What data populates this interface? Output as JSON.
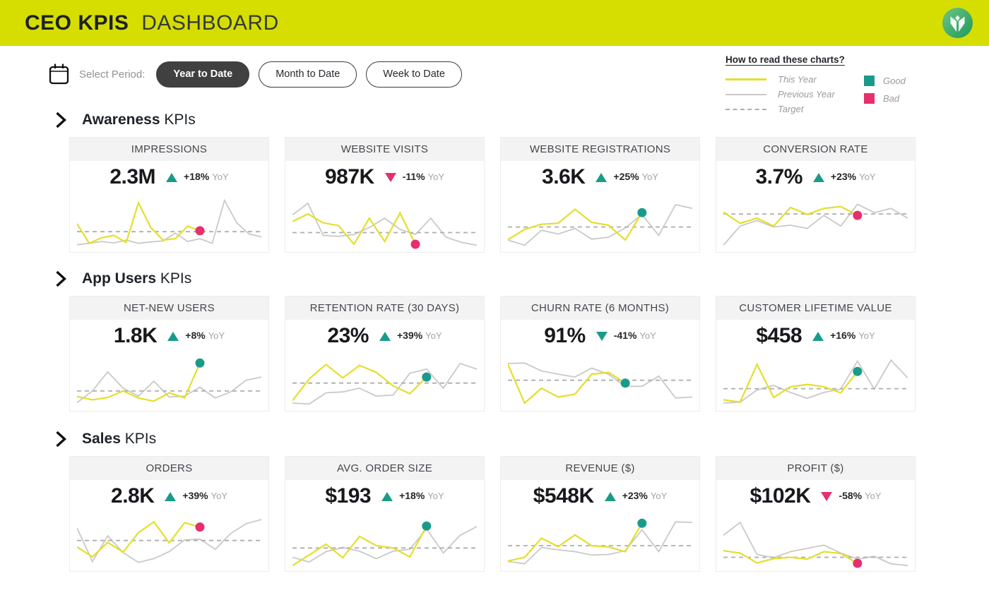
{
  "header": {
    "title_bold": "CEO KPIS",
    "title_light": "DASHBOARD"
  },
  "controls": {
    "label": "Select Period:",
    "periods": [
      {
        "label": "Year to Date",
        "active": true
      },
      {
        "label": "Month to Date",
        "active": false
      },
      {
        "label": "Week to Date",
        "active": false
      }
    ]
  },
  "legend": {
    "title": "How to read these charts?",
    "lines": [
      {
        "label": "This Year",
        "style": "this-year"
      },
      {
        "label": "Previous Year",
        "style": "previous-year"
      },
      {
        "label": "Target",
        "style": "target"
      }
    ],
    "markers": [
      {
        "label": "Good",
        "color_key": "good"
      },
      {
        "label": "Bad",
        "color_key": "bad"
      }
    ]
  },
  "colors": {
    "brand_yellow": "#d5de00",
    "line_this_year": "#e4df2b",
    "line_previous_year": "#c9c9c9",
    "line_target": "#aeaeae",
    "good": "#1a9b8a",
    "bad": "#e72f6d",
    "button_active_bg": "#404040",
    "card_header_bg": "#f3f3f3",
    "muted_text": "#a3a3a3",
    "logo_green_light": "#6ec487",
    "logo_green_dark": "#1e9a5a"
  },
  "sections": [
    {
      "title_bold": "Awareness",
      "title_rest": "KPIs",
      "cards": [
        {
          "title": "IMPRESSIONS",
          "value": "2.3M",
          "delta": "+18%",
          "delta_suffix": "YoY",
          "trend": "up",
          "trend_color": "good",
          "chart_index": 0
        },
        {
          "title": "WEBSITE VISITS",
          "value": "987K",
          "delta": "-11%",
          "delta_suffix": "YoY",
          "trend": "down",
          "trend_color": "bad",
          "chart_index": 1
        },
        {
          "title": "WEBSITE REGISTRATIONS",
          "value": "3.6K",
          "delta": "+25%",
          "delta_suffix": "YoY",
          "trend": "up",
          "trend_color": "good",
          "chart_index": 2
        },
        {
          "title": "CONVERSION RATE",
          "value": "3.7%",
          "delta": "+23%",
          "delta_suffix": "YoY",
          "trend": "up",
          "trend_color": "good",
          "chart_index": 3
        }
      ]
    },
    {
      "title_bold": "App Users",
      "title_rest": "KPIs",
      "cards": [
        {
          "title": "NET-NEW USERS",
          "value": "1.8K",
          "delta": "+8%",
          "delta_suffix": "YoY",
          "trend": "up",
          "trend_color": "good",
          "chart_index": 4
        },
        {
          "title": "RETENTION RATE (30 DAYS)",
          "value": "23%",
          "delta": "+39%",
          "delta_suffix": "YoY",
          "trend": "up",
          "trend_color": "good",
          "chart_index": 5
        },
        {
          "title": "CHURN RATE (6 MONTHS)",
          "value": "91%",
          "delta": "-41%",
          "delta_suffix": "YoY",
          "trend": "down",
          "trend_color": "good",
          "chart_index": 6
        },
        {
          "title": "CUSTOMER LIFETIME VALUE",
          "value": "$458",
          "delta": "+16%",
          "delta_suffix": "YoY",
          "trend": "up",
          "trend_color": "good",
          "chart_index": 7
        }
      ]
    },
    {
      "title_bold": "Sales",
      "title_rest": "KPIs",
      "cards": [
        {
          "title": "ORDERS",
          "value": "2.8K",
          "delta": "+39%",
          "delta_suffix": "YoY",
          "trend": "up",
          "trend_color": "good",
          "chart_index": 8
        },
        {
          "title": "AVG. ORDER SIZE",
          "value": "$193",
          "delta": "+18%",
          "delta_suffix": "YoY",
          "trend": "up",
          "trend_color": "good",
          "chart_index": 9
        },
        {
          "title": "REVENUE ($)",
          "value": "$548K",
          "delta": "+23%",
          "delta_suffix": "YoY",
          "trend": "up",
          "trend_color": "good",
          "chart_index": 10
        },
        {
          "title": "PROFIT ($)",
          "value": "$102K",
          "delta": "-58%",
          "delta_suffix": "YoY",
          "trend": "down",
          "trend_color": "bad",
          "chart_index": 11
        }
      ]
    }
  ],
  "chart_data": [
    {
      "type": "line",
      "title": "IMPRESSIONS",
      "target": 33,
      "end_marker": "bad",
      "series": [
        {
          "name": "This Year",
          "values": [
            50,
            8,
            20,
            25,
            10,
            95,
            42,
            15,
            18,
            45,
            35
          ]
        },
        {
          "name": "Previous Year",
          "values": [
            5,
            8,
            12,
            9,
            15,
            8,
            11,
            13,
            30,
            12,
            18,
            8,
            100,
            52,
            28,
            22
          ]
        }
      ]
    },
    {
      "type": "line",
      "title": "WEBSITE VISITS",
      "target": 31,
      "end_marker": "bad",
      "series": [
        {
          "name": "This Year",
          "values": [
            55,
            71,
            52,
            46,
            6,
            62,
            12,
            73,
            6
          ]
        },
        {
          "name": "Previous Year",
          "values": [
            69,
            94,
            25,
            23,
            27,
            42,
            62,
            38,
            27,
            62,
            21,
            10,
            4
          ]
        }
      ]
    },
    {
      "type": "line",
      "title": "WEBSITE REGISTRATIONS",
      "target": 43,
      "end_marker": "good",
      "series": [
        {
          "name": "This Year",
          "values": [
            16,
            38,
            49,
            51,
            81,
            53,
            47,
            15,
            74
          ]
        },
        {
          "name": "Previous Year",
          "values": [
            15,
            4,
            36,
            28,
            40,
            17,
            21,
            41,
            70,
            25,
            91,
            83
          ]
        }
      ]
    },
    {
      "type": "line",
      "title": "CONVERSION RATE",
      "target": 71,
      "end_marker": "bad",
      "series": [
        {
          "name": "This Year",
          "values": [
            75,
            51,
            62,
            45,
            85,
            70,
            83,
            87,
            68
          ]
        },
        {
          "name": "Previous Year",
          "values": [
            4,
            45,
            57,
            43,
            47,
            40,
            68,
            45,
            92,
            74,
            83,
            62
          ]
        }
      ]
    },
    {
      "type": "line",
      "title": "NET-NEW USERS",
      "target": 32,
      "end_marker": "good",
      "series": [
        {
          "name": "This Year",
          "values": [
            20,
            13,
            18,
            32,
            17,
            10,
            28,
            17,
            92
          ]
        },
        {
          "name": "Previous Year",
          "values": [
            7,
            32,
            73,
            38,
            21,
            53,
            19,
            21,
            40,
            17,
            30,
            55,
            62
          ]
        }
      ]
    },
    {
      "type": "line",
      "title": "RETENTION RATE (30 DAYS)",
      "target": 49,
      "end_marker": "good",
      "series": [
        {
          "name": "This Year",
          "values": [
            11,
            58,
            89,
            60,
            87,
            72,
            43,
            26,
            62
          ]
        },
        {
          "name": "Previous Year",
          "values": [
            6,
            4,
            28,
            30,
            38,
            21,
            23,
            70,
            79,
            38,
            91,
            79
          ]
        }
      ]
    },
    {
      "type": "line",
      "title": "CHURN RATE (6 MONTHS)",
      "target": 55,
      "end_marker": "good",
      "series": [
        {
          "name": "This Year",
          "values": [
            89,
            6,
            38,
            19,
            25,
            68,
            72,
            49
          ]
        },
        {
          "name": "Previous Year",
          "values": [
            91,
            92,
            75,
            68,
            62,
            81,
            68,
            42,
            42,
            64,
            17,
            19
          ]
        }
      ]
    },
    {
      "type": "line",
      "title": "CUSTOMER LIFETIME VALUE",
      "target": 37,
      "end_marker": "good",
      "series": [
        {
          "name": "This Year",
          "values": [
            13,
            8,
            89,
            18,
            41,
            46,
            41,
            28,
            74
          ]
        },
        {
          "name": "Previous Year",
          "values": [
            6,
            8,
            34,
            44,
            29,
            16,
            29,
            36,
            96,
            36,
            98,
            60
          ]
        }
      ]
    },
    {
      "type": "line",
      "title": "ORDERS",
      "target": 55,
      "end_marker": "bad",
      "series": [
        {
          "name": "This Year",
          "values": [
            41,
            20,
            51,
            30,
            72,
            95,
            50,
            93,
            84
          ]
        },
        {
          "name": "Previous Year",
          "values": [
            82,
            10,
            65,
            29,
            8,
            16,
            31,
            56,
            58,
            36,
            70,
            91,
            100
          ]
        }
      ]
    },
    {
      "type": "line",
      "title": "AVG. ORDER SIZE",
      "target": 39,
      "end_marker": "good",
      "series": [
        {
          "name": "This Year",
          "values": [
            1,
            24,
            47,
            18,
            64,
            44,
            39,
            20,
            86
          ]
        },
        {
          "name": "Previous Year",
          "values": [
            19,
            9,
            31,
            40,
            32,
            16,
            32,
            36,
            80,
            28,
            66,
            85
          ]
        }
      ]
    },
    {
      "type": "line",
      "title": "REVENUE ($)",
      "target": 44,
      "end_marker": "good",
      "series": [
        {
          "name": "This Year",
          "values": [
            11,
            19,
            60,
            42,
            67,
            44,
            41,
            31,
            92
          ]
        },
        {
          "name": "Previous Year",
          "values": [
            10,
            5,
            40,
            35,
            31,
            24,
            25,
            33,
            78,
            31,
            95,
            94
          ]
        }
      ]
    },
    {
      "type": "line",
      "title": "PROFIT ($)",
      "target": 19,
      "end_marker": "bad",
      "series": [
        {
          "name": "This Year",
          "values": [
            33,
            28,
            7,
            16,
            19,
            15,
            31,
            27,
            6
          ]
        },
        {
          "name": "Previous Year",
          "values": [
            66,
            94,
            25,
            18,
            31,
            38,
            45,
            28,
            15,
            21,
            5,
            1
          ]
        }
      ]
    }
  ]
}
